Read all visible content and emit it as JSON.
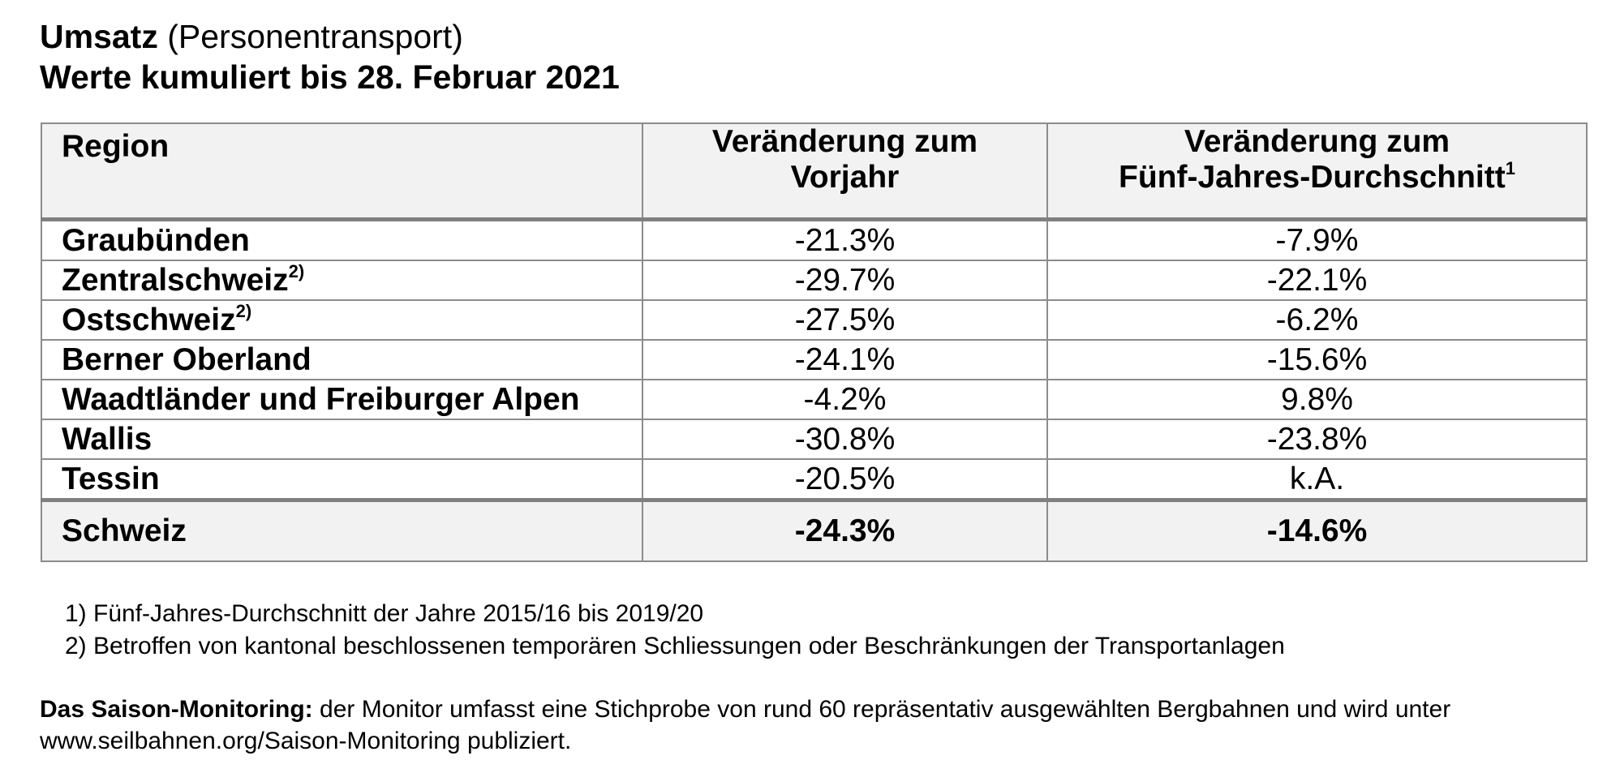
{
  "header": {
    "title_bold": "Umsatz",
    "title_rest": "(Personentransport)",
    "subtitle": "Werte kumuliert bis 28. Februar 2021"
  },
  "table": {
    "columns": [
      {
        "lines": [
          "Region"
        ]
      },
      {
        "lines": [
          "Veränderung zum",
          "Vorjahr"
        ]
      },
      {
        "lines": [
          "Veränderung zum",
          "Fünf-Jahres-Durchschnitt"
        ],
        "note": "1"
      }
    ],
    "rows": [
      [
        {
          "name": "Graubünden"
        },
        "-21.3%",
        "-7.9%"
      ],
      [
        {
          "name": "Zentralschweiz",
          "note": "2)"
        },
        "-29.7%",
        "-22.1%"
      ],
      [
        {
          "name": "Ostschweiz",
          "note": "2)"
        },
        "-27.5%",
        "-6.2%"
      ],
      [
        {
          "name": "Berner Oberland"
        },
        "-24.1%",
        "-15.6%"
      ],
      [
        {
          "name": "Waadtländer und Freiburger Alpen"
        },
        "-4.2%",
        "9.8%"
      ],
      [
        {
          "name": "Wallis"
        },
        "-30.8%",
        "-23.8%"
      ],
      [
        {
          "name": "Tessin"
        },
        "-20.5%",
        "k.A."
      ]
    ],
    "total": [
      {
        "name": "Schweiz"
      },
      "-24.3%",
      "-14.6%"
    ]
  },
  "footnotes": [
    "1) Fünf-Jahres-Durchschnitt der Jahre 2015/16 bis 2019/20",
    "2) Betroffen von kantonal beschlossenen temporären Schliessungen oder Beschränkungen der Transportanlagen"
  ],
  "description": {
    "bold": "Das Saison-Monitoring:",
    "text": "der Monitor umfasst eine Stichprobe von rund 60 repräsentativ ausgewählten Bergbahnen und wird unter www.seilbahnen.org/Saison-Monitoring publiziert."
  }
}
